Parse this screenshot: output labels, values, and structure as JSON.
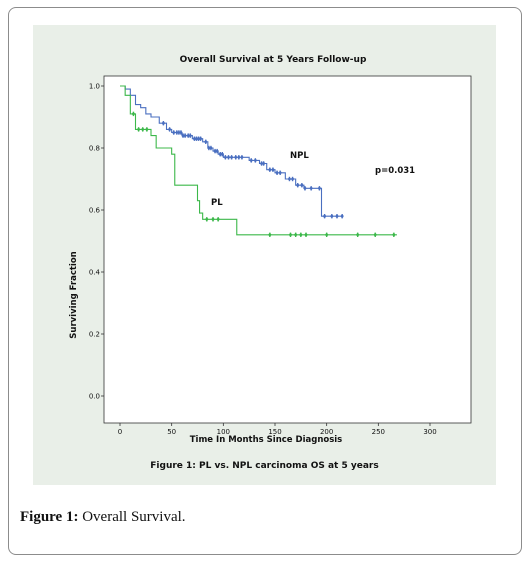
{
  "caption": {
    "label": "Figure 1:",
    "text": " Overall Survival."
  },
  "inner_caption": "Figure 1: PL vs. NPL carcinoma OS at 5 years",
  "colors": {
    "panel_bg": "#e9efe8",
    "npl": "#4a6fc0",
    "pl": "#3cb84a"
  },
  "chart_data": {
    "type": "line",
    "title": "Overall Survival at 5 Years Follow-up",
    "xlabel": "Time In Months Since Diagnosis",
    "ylabel": "Surviving Fraction",
    "xlim": [
      0,
      300
    ],
    "ylim": [
      0.0,
      1.0
    ],
    "xticks": [
      0,
      50,
      100,
      150,
      200,
      250,
      300
    ],
    "yticks": [
      0.0,
      0.2,
      0.4,
      0.6,
      0.8,
      1.0
    ],
    "xtick_labels": [
      "0",
      "50",
      "100",
      "150",
      "200",
      "250",
      "300"
    ],
    "ytick_labels": [
      "0.0",
      "0.2",
      "0.4",
      "0.6",
      "0.8",
      "1.0"
    ],
    "grid": false,
    "annotation": "p=0.031",
    "series": [
      {
        "name": "NPL",
        "steps": [
          [
            0,
            1.0
          ],
          [
            5,
            0.99
          ],
          [
            10,
            0.97
          ],
          [
            15,
            0.94
          ],
          [
            20,
            0.93
          ],
          [
            25,
            0.91
          ],
          [
            30,
            0.9
          ],
          [
            38,
            0.88
          ],
          [
            45,
            0.86
          ],
          [
            50,
            0.85
          ],
          [
            60,
            0.84
          ],
          [
            70,
            0.83
          ],
          [
            80,
            0.82
          ],
          [
            85,
            0.8
          ],
          [
            90,
            0.79
          ],
          [
            95,
            0.78
          ],
          [
            100,
            0.77
          ],
          [
            125,
            0.76
          ],
          [
            135,
            0.75
          ],
          [
            142,
            0.73
          ],
          [
            150,
            0.72
          ],
          [
            160,
            0.7
          ],
          [
            170,
            0.68
          ],
          [
            178,
            0.67
          ],
          [
            190,
            0.67
          ],
          [
            195,
            0.58
          ],
          [
            215,
            0.58
          ]
        ],
        "censored": [
          42,
          48,
          52,
          55,
          57,
          59,
          61,
          63,
          66,
          68,
          72,
          74,
          76,
          78,
          83,
          86,
          88,
          92,
          94,
          97,
          99,
          102,
          105,
          108,
          112,
          115,
          118,
          127,
          131,
          137,
          139,
          145,
          148,
          152,
          155,
          164,
          167,
          172,
          176,
          179,
          185,
          193,
          198,
          205,
          210,
          215
        ]
      },
      {
        "name": "PL",
        "steps": [
          [
            0,
            1.0
          ],
          [
            5,
            0.97
          ],
          [
            10,
            0.91
          ],
          [
            15,
            0.86
          ],
          [
            30,
            0.84
          ],
          [
            35,
            0.8
          ],
          [
            50,
            0.78
          ],
          [
            53,
            0.68
          ],
          [
            75,
            0.63
          ],
          [
            77,
            0.59
          ],
          [
            80,
            0.57
          ],
          [
            110,
            0.57
          ],
          [
            113,
            0.52
          ],
          [
            268,
            0.52
          ]
        ],
        "censored": [
          13,
          18,
          22,
          26,
          84,
          90,
          95,
          145,
          165,
          170,
          175,
          180,
          200,
          230,
          247,
          265
        ]
      }
    ]
  }
}
